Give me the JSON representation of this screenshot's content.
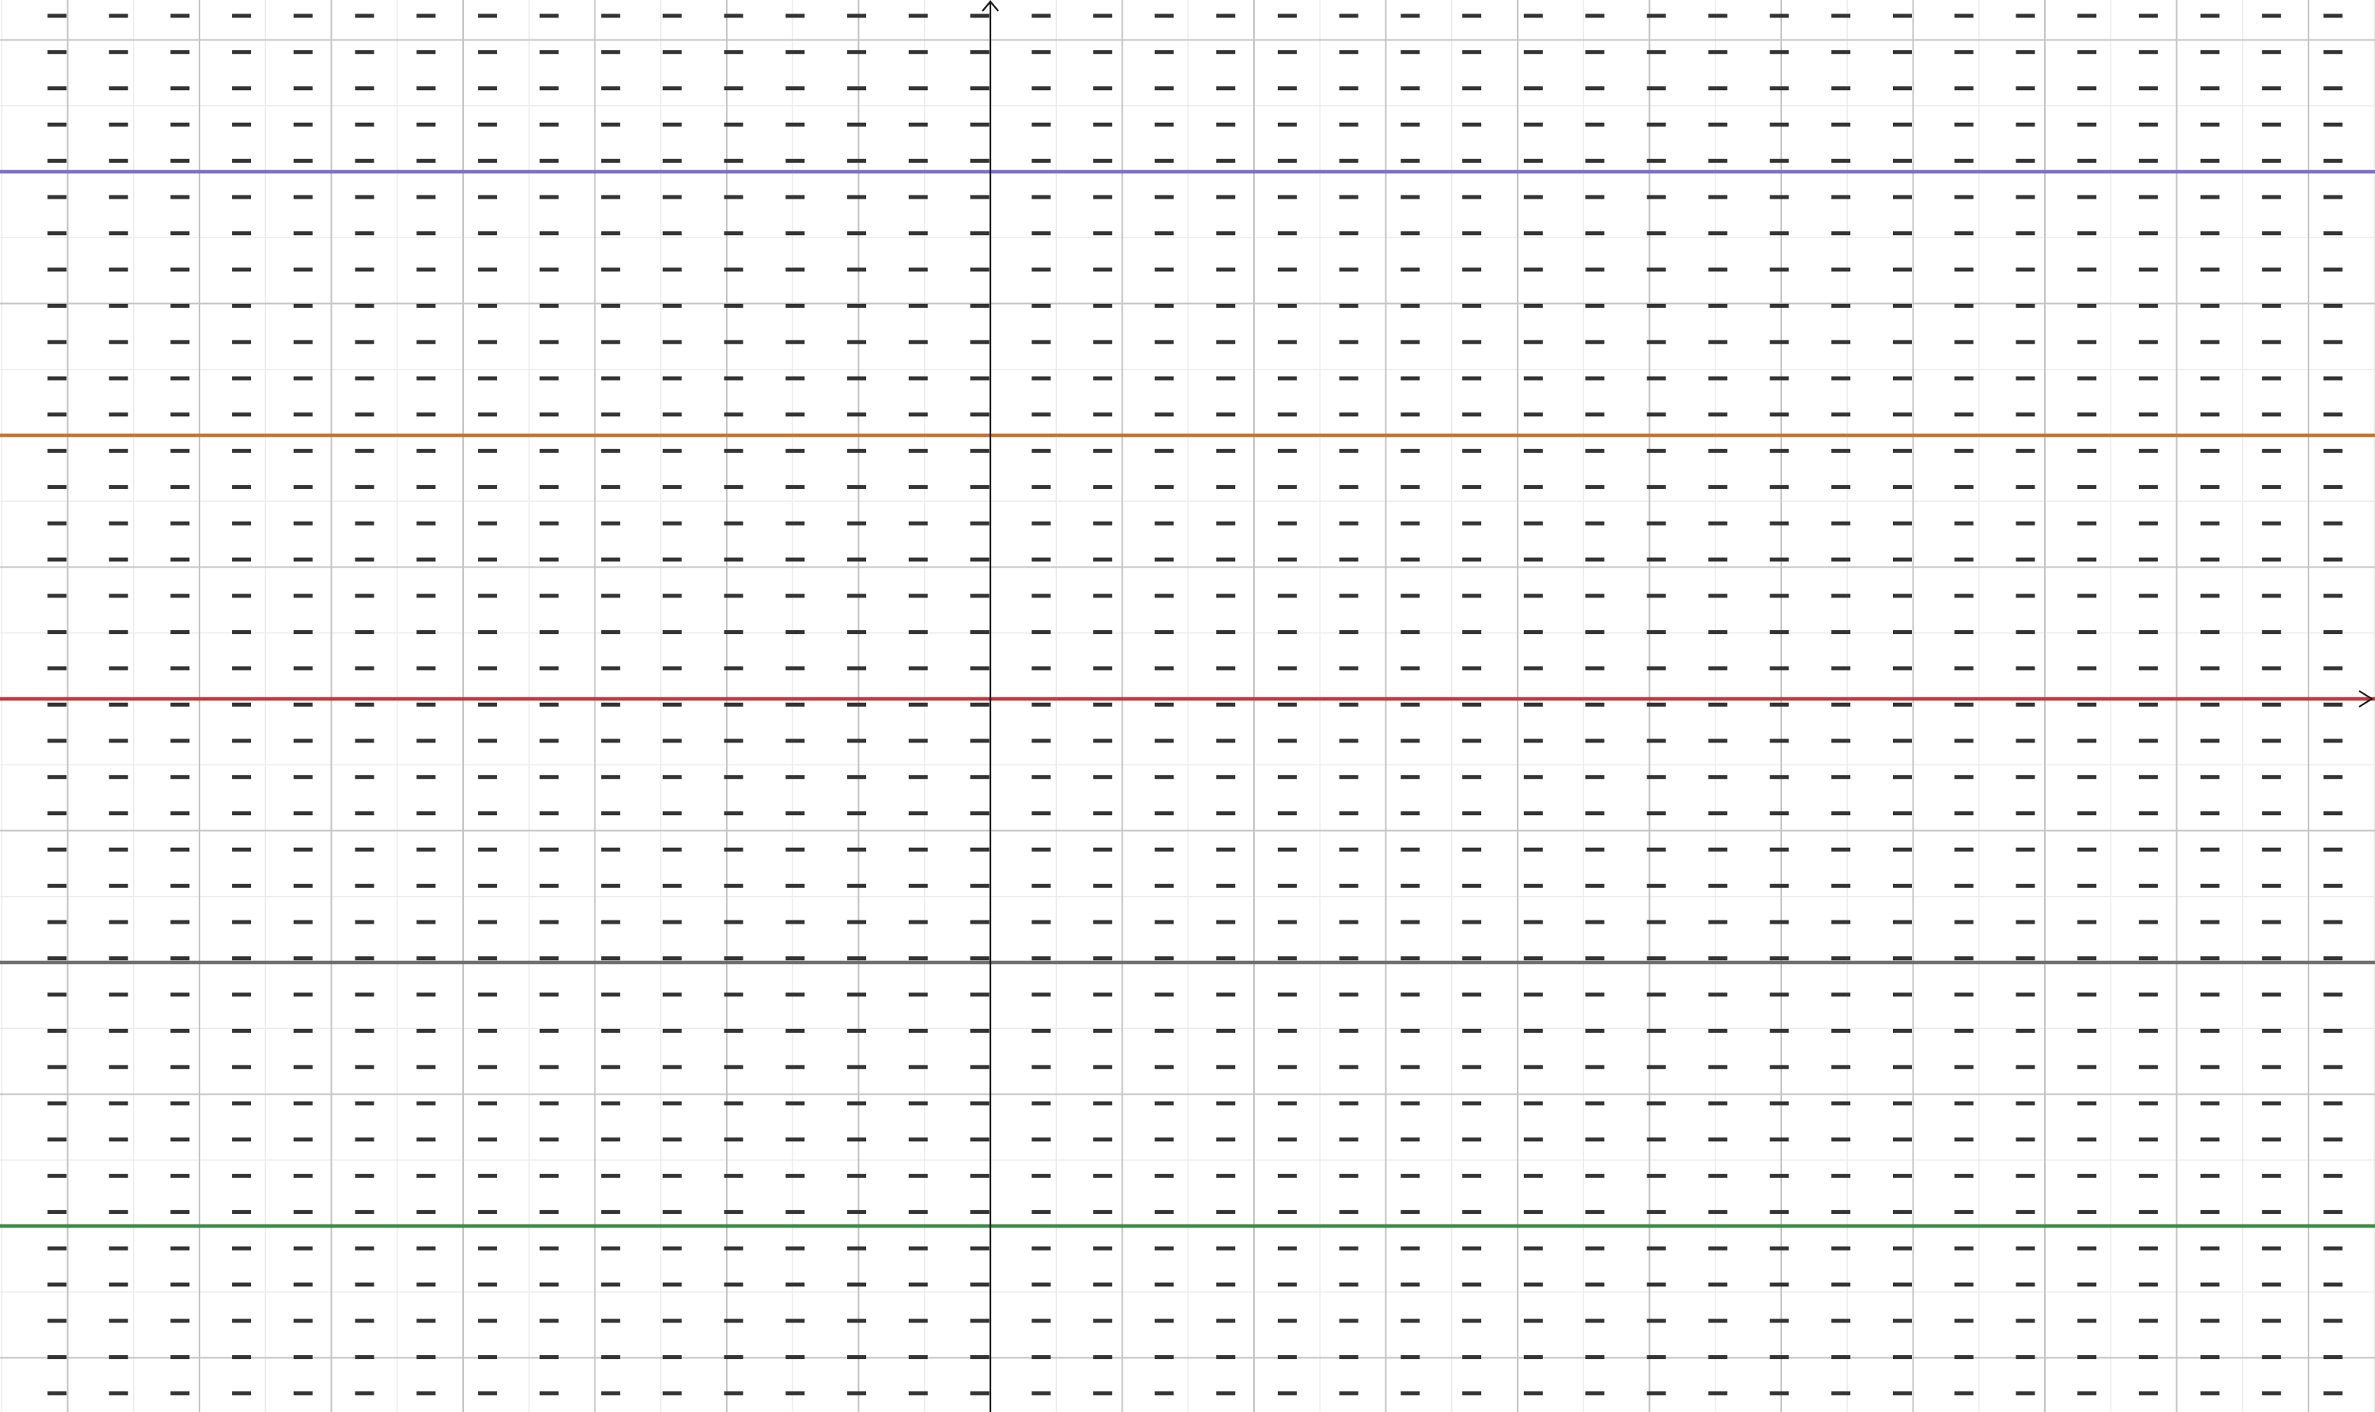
{
  "app": {
    "view": "graphing-calculator-plot"
  },
  "colors": {
    "background": "#ffffff",
    "grid_minor": "#ececec",
    "grid_major": "#c4c4c4",
    "axis": "#1a1a1a",
    "slope_field": "#333333"
  },
  "slope_field": {
    "slope": 0,
    "icon": "dash-segment"
  },
  "chart_data": {
    "type": "line",
    "grid": true,
    "axes_arrows": true,
    "series": [
      {
        "y": 4,
        "color": "#7f6ed0"
      },
      {
        "y": 2,
        "color": "#c8742f"
      },
      {
        "y": 0,
        "color": "#c0393b"
      },
      {
        "y": -2,
        "color": "#707070"
      },
      {
        "y": -4,
        "color": "#3d8a48"
      }
    ]
  }
}
